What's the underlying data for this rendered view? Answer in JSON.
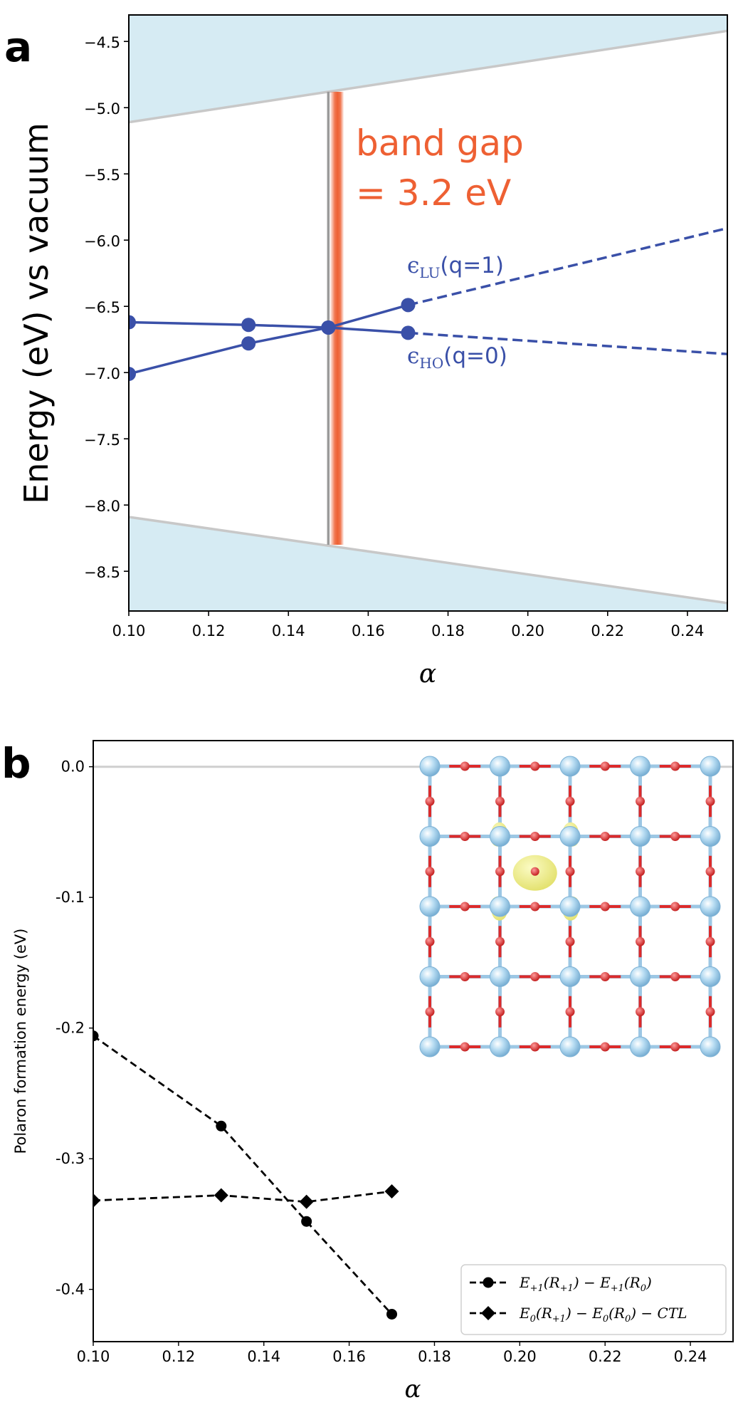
{
  "chart_data": [
    {
      "panel": "a",
      "type": "line",
      "ylabel": "Energy (eV) vs vacuum",
      "xlabel": "α",
      "xlim": [
        0.1,
        0.25
      ],
      "ylim": [
        -8.8,
        -4.3
      ],
      "xticks": [
        "0.10",
        "0.12",
        "0.14",
        "0.16",
        "0.18",
        "0.20",
        "0.22",
        "0.24"
      ],
      "yticks": [
        "−4.5",
        "−5.0",
        "−5.5",
        "−6.0",
        "−6.5",
        "−7.0",
        "−7.5",
        "−8.0",
        "−8.5"
      ],
      "series": [
        {
          "name": "ϵLU(q=1)",
          "label_main": "ϵ",
          "label_sub": "LU",
          "label_tail": "(q=1)",
          "color": "#3a50a8",
          "x": [
            0.1,
            0.13,
            0.15,
            0.17
          ],
          "y": [
            -7.01,
            -6.78,
            -6.66,
            -6.49
          ],
          "extrapolation": {
            "x": [
              0.17,
              0.25
            ],
            "y": [
              -6.49,
              -5.91
            ]
          }
        },
        {
          "name": "ϵHO(q=0)",
          "label_main": "ϵ",
          "label_sub": "HO",
          "label_tail": "(q=0)",
          "color": "#3a50a8",
          "x": [
            0.1,
            0.13,
            0.15,
            0.17
          ],
          "y": [
            -6.62,
            -6.64,
            -6.66,
            -6.7
          ],
          "extrapolation": {
            "x": [
              0.17,
              0.25
            ],
            "y": [
              -6.7,
              -6.86
            ]
          }
        }
      ],
      "conduction_band_edge": {
        "x": [
          0.1,
          0.25
        ],
        "y": [
          -5.11,
          -4.42
        ],
        "fill": "#d6ebf3"
      },
      "valence_band_edge": {
        "x": [
          0.1,
          0.25
        ],
        "y": [
          -8.09,
          -8.74
        ],
        "fill": "#d6ebf3"
      },
      "crossing_marker": {
        "x": 0.15,
        "y_from": -4.88,
        "y_to": -8.3
      },
      "band_gap_annotation": {
        "line1": "band gap",
        "line2": "= 3.2 eV",
        "color": "#ee6033"
      }
    },
    {
      "panel": "b",
      "type": "line",
      "ylabel": "Polaron formation energy (eV)",
      "xlabel": "α",
      "xlim": [
        0.1,
        0.25
      ],
      "ylim": [
        -0.44,
        0.02
      ],
      "xticks": [
        "0.10",
        "0.12",
        "0.14",
        "0.16",
        "0.18",
        "0.20",
        "0.22",
        "0.24"
      ],
      "yticks": [
        "0.0",
        "-0.1",
        "-0.2",
        "-0.3",
        "-0.4"
      ],
      "reference_line_y": 0.0,
      "series": [
        {
          "name": "E+1(R+1) − E+1(R0)",
          "marker": "circle",
          "color": "#000000",
          "x": [
            0.1,
            0.13,
            0.15,
            0.17
          ],
          "y": [
            -0.206,
            -0.275,
            -0.348,
            -0.419
          ]
        },
        {
          "name": "E0(R+1) − E0(R0) − CTL",
          "marker": "diamond",
          "color": "#000000",
          "x": [
            0.1,
            0.13,
            0.15,
            0.17
          ],
          "y": [
            -0.332,
            -0.328,
            -0.333,
            -0.325
          ]
        }
      ],
      "legend": {
        "position": "bottom-right",
        "entry1": {
          "base1": "E",
          "sub1": "+1",
          "mid1": "(R",
          "sub2": "+1",
          "mid2": ") − E",
          "sub3": "+1",
          "mid3": "(R",
          "sub4": "0",
          "tail": ")"
        },
        "entry2": {
          "base1": "E",
          "sub1": "0",
          "mid1": "(R",
          "sub2": "+1",
          "mid2": ") − E",
          "sub3": "0",
          "mid3": "(R",
          "sub4": "0",
          "tail": ") − CTL"
        }
      },
      "inset": {
        "content": "polaron-lattice-structure",
        "colors": {
          "metal": "#8ec3e6",
          "oxygen": "#dd2a2a",
          "bond": "#9cc7e4",
          "density": "#eeee7a"
        }
      }
    }
  ]
}
